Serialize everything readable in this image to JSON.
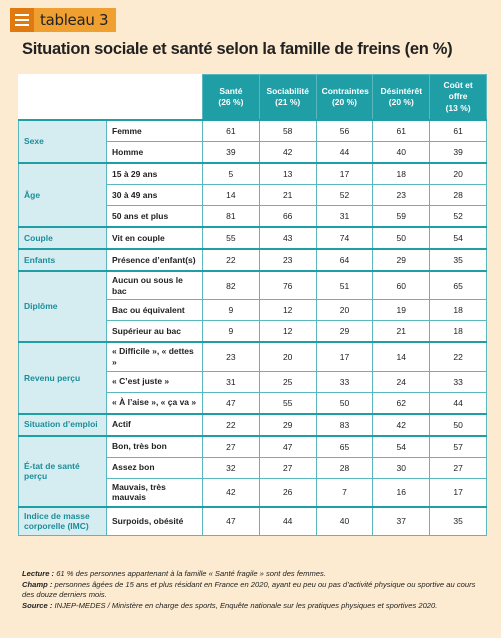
{
  "header": {
    "label": "tableau 3",
    "title": "Situation sociale et santé selon la famille de freins (en %)"
  },
  "table": {
    "columns": [
      {
        "name": "Santé",
        "share": "(26 %)"
      },
      {
        "name": "Sociabilité",
        "share": "(21 %)"
      },
      {
        "name": "Contraintes",
        "share": "(20 %)"
      },
      {
        "name": "Désintérêt",
        "share": "(20 %)"
      },
      {
        "name": "Coût et offre",
        "share": "(13 %)"
      }
    ],
    "groups": [
      {
        "name": "Sexe",
        "rows": [
          {
            "label": "Femme",
            "values": [
              61,
              58,
              56,
              61,
              61
            ]
          },
          {
            "label": "Homme",
            "values": [
              39,
              42,
              44,
              40,
              39
            ]
          }
        ]
      },
      {
        "name": "Âge",
        "rows": [
          {
            "label": "15 à 29 ans",
            "values": [
              5,
              13,
              17,
              18,
              20
            ]
          },
          {
            "label": "30 à 49 ans",
            "values": [
              14,
              21,
              52,
              23,
              28
            ]
          },
          {
            "label": "50 ans et plus",
            "values": [
              81,
              66,
              31,
              59,
              52
            ]
          }
        ]
      },
      {
        "name": "Couple",
        "rows": [
          {
            "label": "Vit en couple",
            "values": [
              55,
              43,
              74,
              50,
              54
            ]
          }
        ]
      },
      {
        "name": "Enfants",
        "rows": [
          {
            "label": "Présence d’enfant(s)",
            "values": [
              22,
              23,
              64,
              29,
              35
            ]
          }
        ]
      },
      {
        "name": "Diplôme",
        "rows": [
          {
            "label": "Aucun ou sous le bac",
            "values": [
              82,
              76,
              51,
              60,
              65
            ]
          },
          {
            "label": "Bac ou équivalent",
            "values": [
              9,
              12,
              20,
              19,
              18
            ]
          },
          {
            "label": "Supérieur au bac",
            "values": [
              9,
              12,
              29,
              21,
              18
            ]
          }
        ]
      },
      {
        "name": "Revenu perçu",
        "rows": [
          {
            "label": "« Difficile », « dettes »",
            "values": [
              23,
              20,
              17,
              14,
              22
            ]
          },
          {
            "label": "« C’est juste »",
            "values": [
              31,
              25,
              33,
              24,
              33
            ]
          },
          {
            "label": "« À l’aise », « ça va »",
            "values": [
              47,
              55,
              50,
              62,
              44
            ]
          }
        ]
      },
      {
        "name": "Situation d’emploi",
        "rows": [
          {
            "label": "Actif",
            "values": [
              22,
              29,
              83,
              42,
              50
            ]
          }
        ]
      },
      {
        "name": "É-tat de santé perçu",
        "rows": [
          {
            "label": "Bon, très bon",
            "values": [
              27,
              47,
              65,
              54,
              57
            ]
          },
          {
            "label": "Assez bon",
            "values": [
              32,
              27,
              28,
              30,
              27
            ]
          },
          {
            "label": "Mauvais, très mauvais",
            "values": [
              42,
              26,
              7,
              16,
              17
            ]
          }
        ]
      },
      {
        "name": "Indice de masse corporelle (IMC)",
        "rows": [
          {
            "label": "Surpoids, obésité",
            "values": [
              47,
              44,
              40,
              37,
              35
            ]
          }
        ]
      }
    ]
  },
  "notes": [
    {
      "label": "Lecture :",
      "text": "61 % des personnes appartenant à la famille « Santé fragile » sont des femmes."
    },
    {
      "label": "Champ :",
      "text": "personnes âgées de 15 ans et plus résidant en France en 2020, ayant eu peu ou pas d’activité physique ou sportive au cours des douze derniers mois."
    },
    {
      "label": "Source :",
      "text": "INJEP-MEDES / Ministère en charge des sports, Enquête nationale sur les pratiques physiques et sportives 2020."
    }
  ]
}
